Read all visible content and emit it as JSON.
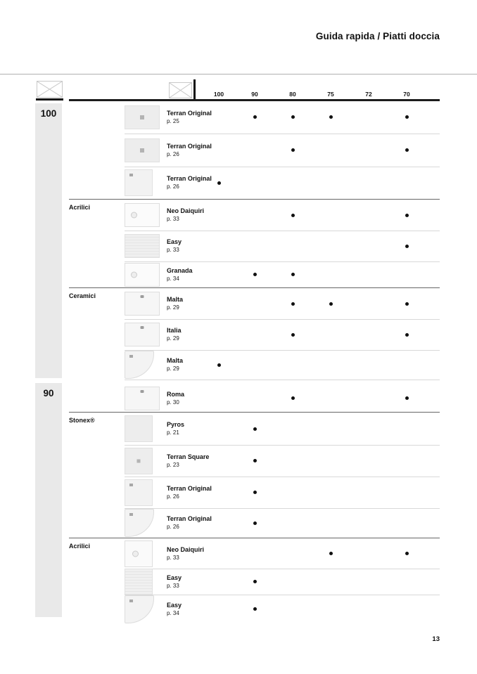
{
  "page": {
    "title": "Guida rapida / Piatti doccia",
    "number": "13"
  },
  "colors": {
    "text": "#111111",
    "band_gray": "#e9e9e9",
    "separator_light": "#d8d8d8",
    "separator_dark": "#666666",
    "dot": "#111111"
  },
  "icons": {
    "length_pictogram": "length-pictogram-icon",
    "width_pictogram": "width-pictogram-icon"
  },
  "table": {
    "columns": [
      "100",
      "90",
      "80",
      "75",
      "72",
      "70"
    ],
    "groups": [
      {
        "label": "100",
        "sections": [
          {
            "category": "",
            "rows": [
              {
                "name": "Terran Original",
                "page": "p. 25",
                "thumb": "rect-drain",
                "dots": [
                  "90",
                  "80",
                  "75",
                  "70"
                ]
              },
              {
                "name": "Terran Original",
                "page": "p. 26",
                "thumb": "rect-drain",
                "dots": [
                  "80",
                  "70"
                ]
              },
              {
                "name": "Terran Original",
                "page": "p. 26",
                "thumb": "square-corner",
                "dots": [
                  "100"
                ]
              }
            ]
          },
          {
            "category": "Acrilici",
            "rows": [
              {
                "name": "Neo Daiquiri",
                "page": "p. 33",
                "thumb": "rect-circle",
                "dots": [
                  "80",
                  "70"
                ]
              },
              {
                "name": "Easy",
                "page": "p. 33",
                "thumb": "rect-texture",
                "dots": [
                  "70"
                ]
              },
              {
                "name": "Granada",
                "page": "p. 34",
                "thumb": "rect-circle",
                "dots": [
                  "90",
                  "80"
                ]
              }
            ]
          },
          {
            "category": "Ceramici",
            "rows": [
              {
                "name": "Malta",
                "page": "p. 29",
                "thumb": "rect-top-dot",
                "dots": [
                  "80",
                  "75",
                  "70"
                ]
              },
              {
                "name": "Italia",
                "page": "p. 29",
                "thumb": "rect-top-dot",
                "dots": [
                  "80",
                  "70"
                ]
              },
              {
                "name": "Malta",
                "page": "p. 29",
                "thumb": "quarter",
                "dots": [
                  "100"
                ]
              }
            ]
          }
        ]
      },
      {
        "label": "90",
        "sections": [
          {
            "category": "",
            "rows": [
              {
                "name": "Roma",
                "page": "p. 30",
                "thumb": "rect-top-dot",
                "dots": [
                  "80",
                  "70"
                ]
              }
            ]
          },
          {
            "category": "Stonex®",
            "rows": [
              {
                "name": "Pyros",
                "page": "p. 21",
                "thumb": "square-plain",
                "dots": [
                  "90"
                ]
              },
              {
                "name": "Terran Square",
                "page": "p. 23",
                "thumb": "square-center",
                "dots": [
                  "90"
                ]
              },
              {
                "name": "Terran Original",
                "page": "p. 26",
                "thumb": "square-corner",
                "dots": [
                  "90"
                ]
              },
              {
                "name": "Terran Original",
                "page": "p. 26",
                "thumb": "quarter",
                "dots": [
                  "90"
                ]
              }
            ]
          },
          {
            "category": "Acrilici",
            "rows": [
              {
                "name": "Neo Daiquiri",
                "page": "p. 33",
                "thumb": "square-circle",
                "dots": [
                  "75",
                  "70"
                ]
              },
              {
                "name": "Easy",
                "page": "p. 33",
                "thumb": "square-texture",
                "dots": [
                  "90"
                ]
              },
              {
                "name": "Easy",
                "page": "p. 34",
                "thumb": "quarter",
                "dots": [
                  "90"
                ]
              }
            ]
          }
        ]
      }
    ]
  }
}
